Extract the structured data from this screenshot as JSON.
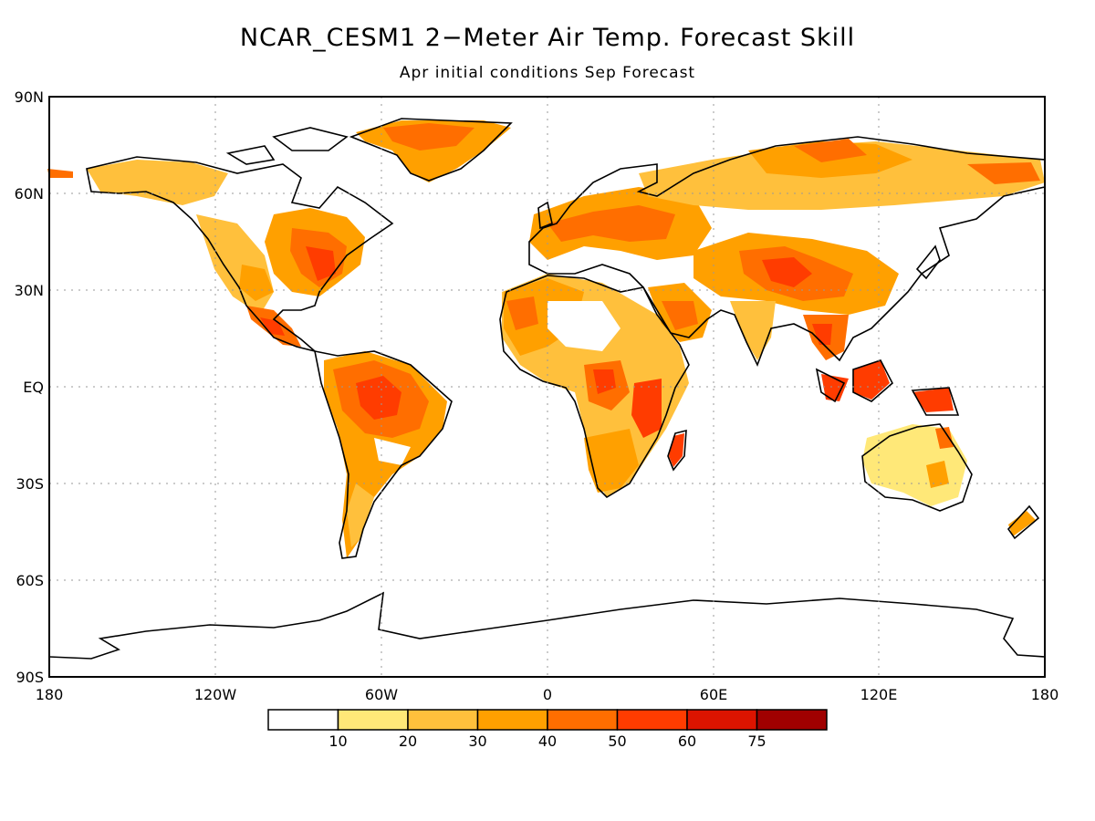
{
  "title": "NCAR_CESM1 2−Meter Air Temp. Forecast Skill",
  "subtitle": "Apr initial conditions  Sep Forecast",
  "lat_labels": [
    "90N",
    "60N",
    "30N",
    "EQ",
    "30S",
    "60S",
    "90S"
  ],
  "lon_labels": [
    "180",
    "120W",
    "60W",
    "0",
    "60E",
    "120E",
    "180"
  ],
  "colorbar": {
    "colors": [
      "#ffffff",
      "#ffe878",
      "#ffc03c",
      "#ffa000",
      "#ff6e00",
      "#ff3c00",
      "#dc1400",
      "#a00000"
    ],
    "labels": [
      "10",
      "20",
      "30",
      "40",
      "50",
      "60",
      "75"
    ]
  },
  "skill_colors": {
    "low": "#ffe878",
    "mid": "#ffc03c",
    "mid2": "#ffa000",
    "high": "#ff6e00",
    "higher": "#ff3c00",
    "top": "#dc1400"
  }
}
